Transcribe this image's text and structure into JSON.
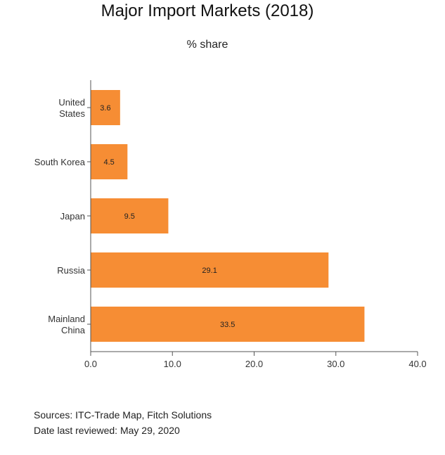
{
  "title": "Major Import Markets (2018)",
  "subtitle": "% share",
  "chart_data": {
    "type": "bar",
    "orientation": "horizontal",
    "categories": [
      [
        "United",
        "States"
      ],
      [
        "South Korea"
      ],
      [
        "Japan"
      ],
      [
        "Russia"
      ],
      [
        "Mainland",
        "China"
      ]
    ],
    "values": [
      3.6,
      4.5,
      9.5,
      29.1,
      33.5
    ],
    "data_labels": [
      "3.6",
      "4.5",
      "9.5",
      "29.1",
      "33.5"
    ],
    "xlim": [
      0,
      40
    ],
    "x_ticks": [
      "0.0",
      "10.0",
      "20.0",
      "30.0",
      "40.0"
    ],
    "x_tick_values": [
      0,
      10,
      20,
      30,
      40
    ],
    "bar_color": "#f68d34",
    "grid": false,
    "legend": "none"
  },
  "footer": {
    "sources": "Sources: ITC-Trade Map, Fitch Solutions",
    "reviewed": "Date last reviewed: May 29, 2020"
  }
}
